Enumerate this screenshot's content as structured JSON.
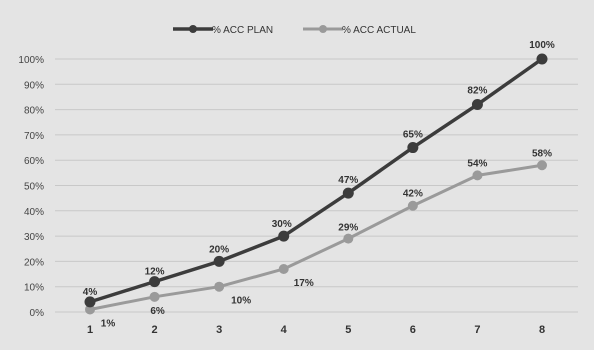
{
  "chart_data": {
    "type": "line",
    "categories": [
      "1",
      "2",
      "3",
      "4",
      "5",
      "6",
      "7",
      "8"
    ],
    "series": [
      {
        "name": "% ACC PLAN",
        "values": [
          4,
          12,
          20,
          30,
          47,
          65,
          82,
          100
        ],
        "labels": [
          "4%",
          "12%",
          "20%",
          "30%",
          "47%",
          "65%",
          "82%",
          "100%"
        ],
        "color": "#3c3c3c"
      },
      {
        "name": "% ACC ACTUAL",
        "values": [
          1,
          6,
          10,
          17,
          29,
          42,
          54,
          58
        ],
        "labels": [
          "1%",
          "6%",
          "10%",
          "17%",
          "29%",
          "42%",
          "54%",
          "58%"
        ],
        "color": "#9a9a9a"
      }
    ],
    "y_ticks": [
      "0%",
      "10%",
      "20%",
      "30%",
      "40%",
      "50%",
      "60%",
      "70%",
      "80%",
      "90%",
      "100%"
    ],
    "ylim": [
      0,
      100
    ],
    "grid": true,
    "legend_position": "top"
  }
}
